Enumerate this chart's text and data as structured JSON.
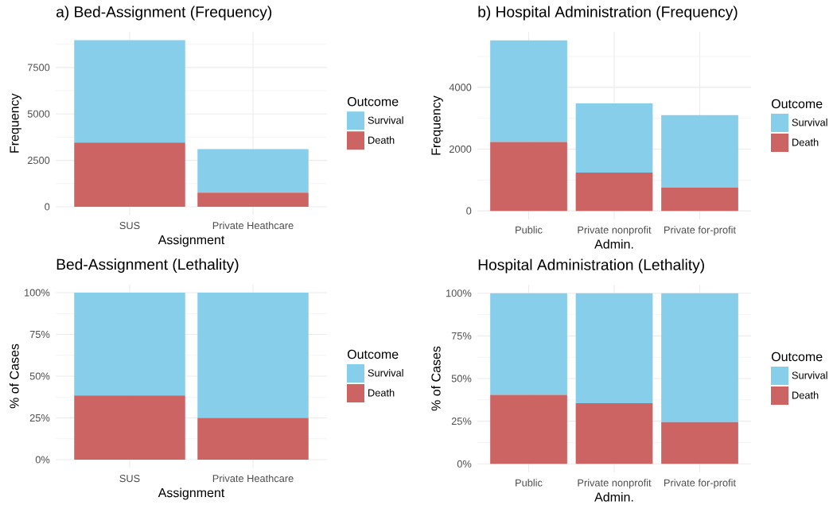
{
  "chart_data": [
    {
      "type": "bar",
      "title": "a) Bed-Assignment (Frequency)",
      "xlabel": "Assignment",
      "ylabel": "Frequency",
      "legend_title": "Outcome",
      "categories": [
        "SUS",
        "Private Heathcare"
      ],
      "stacked": true,
      "series": [
        {
          "name": "Death",
          "color": "#cc6464",
          "values": [
            3460,
            760
          ]
        },
        {
          "name": "Survival",
          "color": "#87ceeb",
          "values": [
            5510,
            2340
          ]
        }
      ],
      "ylim": [
        -450,
        9420
      ],
      "yticks": [
        0,
        2500,
        5000,
        7500
      ],
      "grid": true,
      "legend": "right"
    },
    {
      "type": "bar",
      "title": "b) Hospital Administration (Frequency)",
      "xlabel": "Admin.",
      "ylabel": "Frequency",
      "legend_title": "Outcome",
      "categories": [
        "Public",
        "Private nonprofit",
        "Private for-profit"
      ],
      "stacked": true,
      "series": [
        {
          "name": "Death",
          "color": "#cc6464",
          "values": [
            2230,
            1240,
            760
          ]
        },
        {
          "name": "Survival",
          "color": "#87ceeb",
          "values": [
            3290,
            2240,
            2340
          ]
        }
      ],
      "ylim": [
        -280,
        5800
      ],
      "yticks": [
        0,
        2000,
        4000
      ],
      "grid": true,
      "legend": "right"
    },
    {
      "type": "bar",
      "title": "Bed-Assignment (Lethality)",
      "xlabel": "Assignment",
      "ylabel": "% of Cases",
      "legend_title": "Outcome",
      "categories": [
        "SUS",
        "Private Heathcare"
      ],
      "stacked": true,
      "series": [
        {
          "name": "Death",
          "color": "#cc6464",
          "values": [
            38.5,
            25
          ]
        },
        {
          "name": "Survival",
          "color": "#87ceeb",
          "values": [
            61.5,
            75
          ]
        }
      ],
      "ylim": [
        -5,
        105
      ],
      "yticks": [
        {
          "value": 0,
          "label": "0%"
        },
        {
          "value": 25,
          "label": "25%"
        },
        {
          "value": 50,
          "label": "50%"
        },
        {
          "value": 75,
          "label": "75%"
        },
        {
          "value": 100,
          "label": "100%"
        }
      ],
      "grid": true,
      "legend": "right"
    },
    {
      "type": "bar",
      "title": "Hospital Administration (Lethality)",
      "xlabel": "Admin.",
      "ylabel": "% of Cases",
      "legend_title": "Outcome",
      "categories": [
        "Public",
        "Private nonprofit",
        "Private for-profit"
      ],
      "stacked": true,
      "series": [
        {
          "name": "Death",
          "color": "#cc6464",
          "values": [
            40.5,
            35.5,
            24.5
          ]
        },
        {
          "name": "Survival",
          "color": "#87ceeb",
          "values": [
            59.5,
            64.5,
            75.5
          ]
        }
      ],
      "ylim": [
        -5,
        105
      ],
      "yticks": [
        {
          "value": 0,
          "label": "0%"
        },
        {
          "value": 25,
          "label": "25%"
        },
        {
          "value": 50,
          "label": "50%"
        },
        {
          "value": 75,
          "label": "75%"
        },
        {
          "value": 100,
          "label": "100%"
        }
      ],
      "grid": true,
      "legend": "right"
    }
  ]
}
